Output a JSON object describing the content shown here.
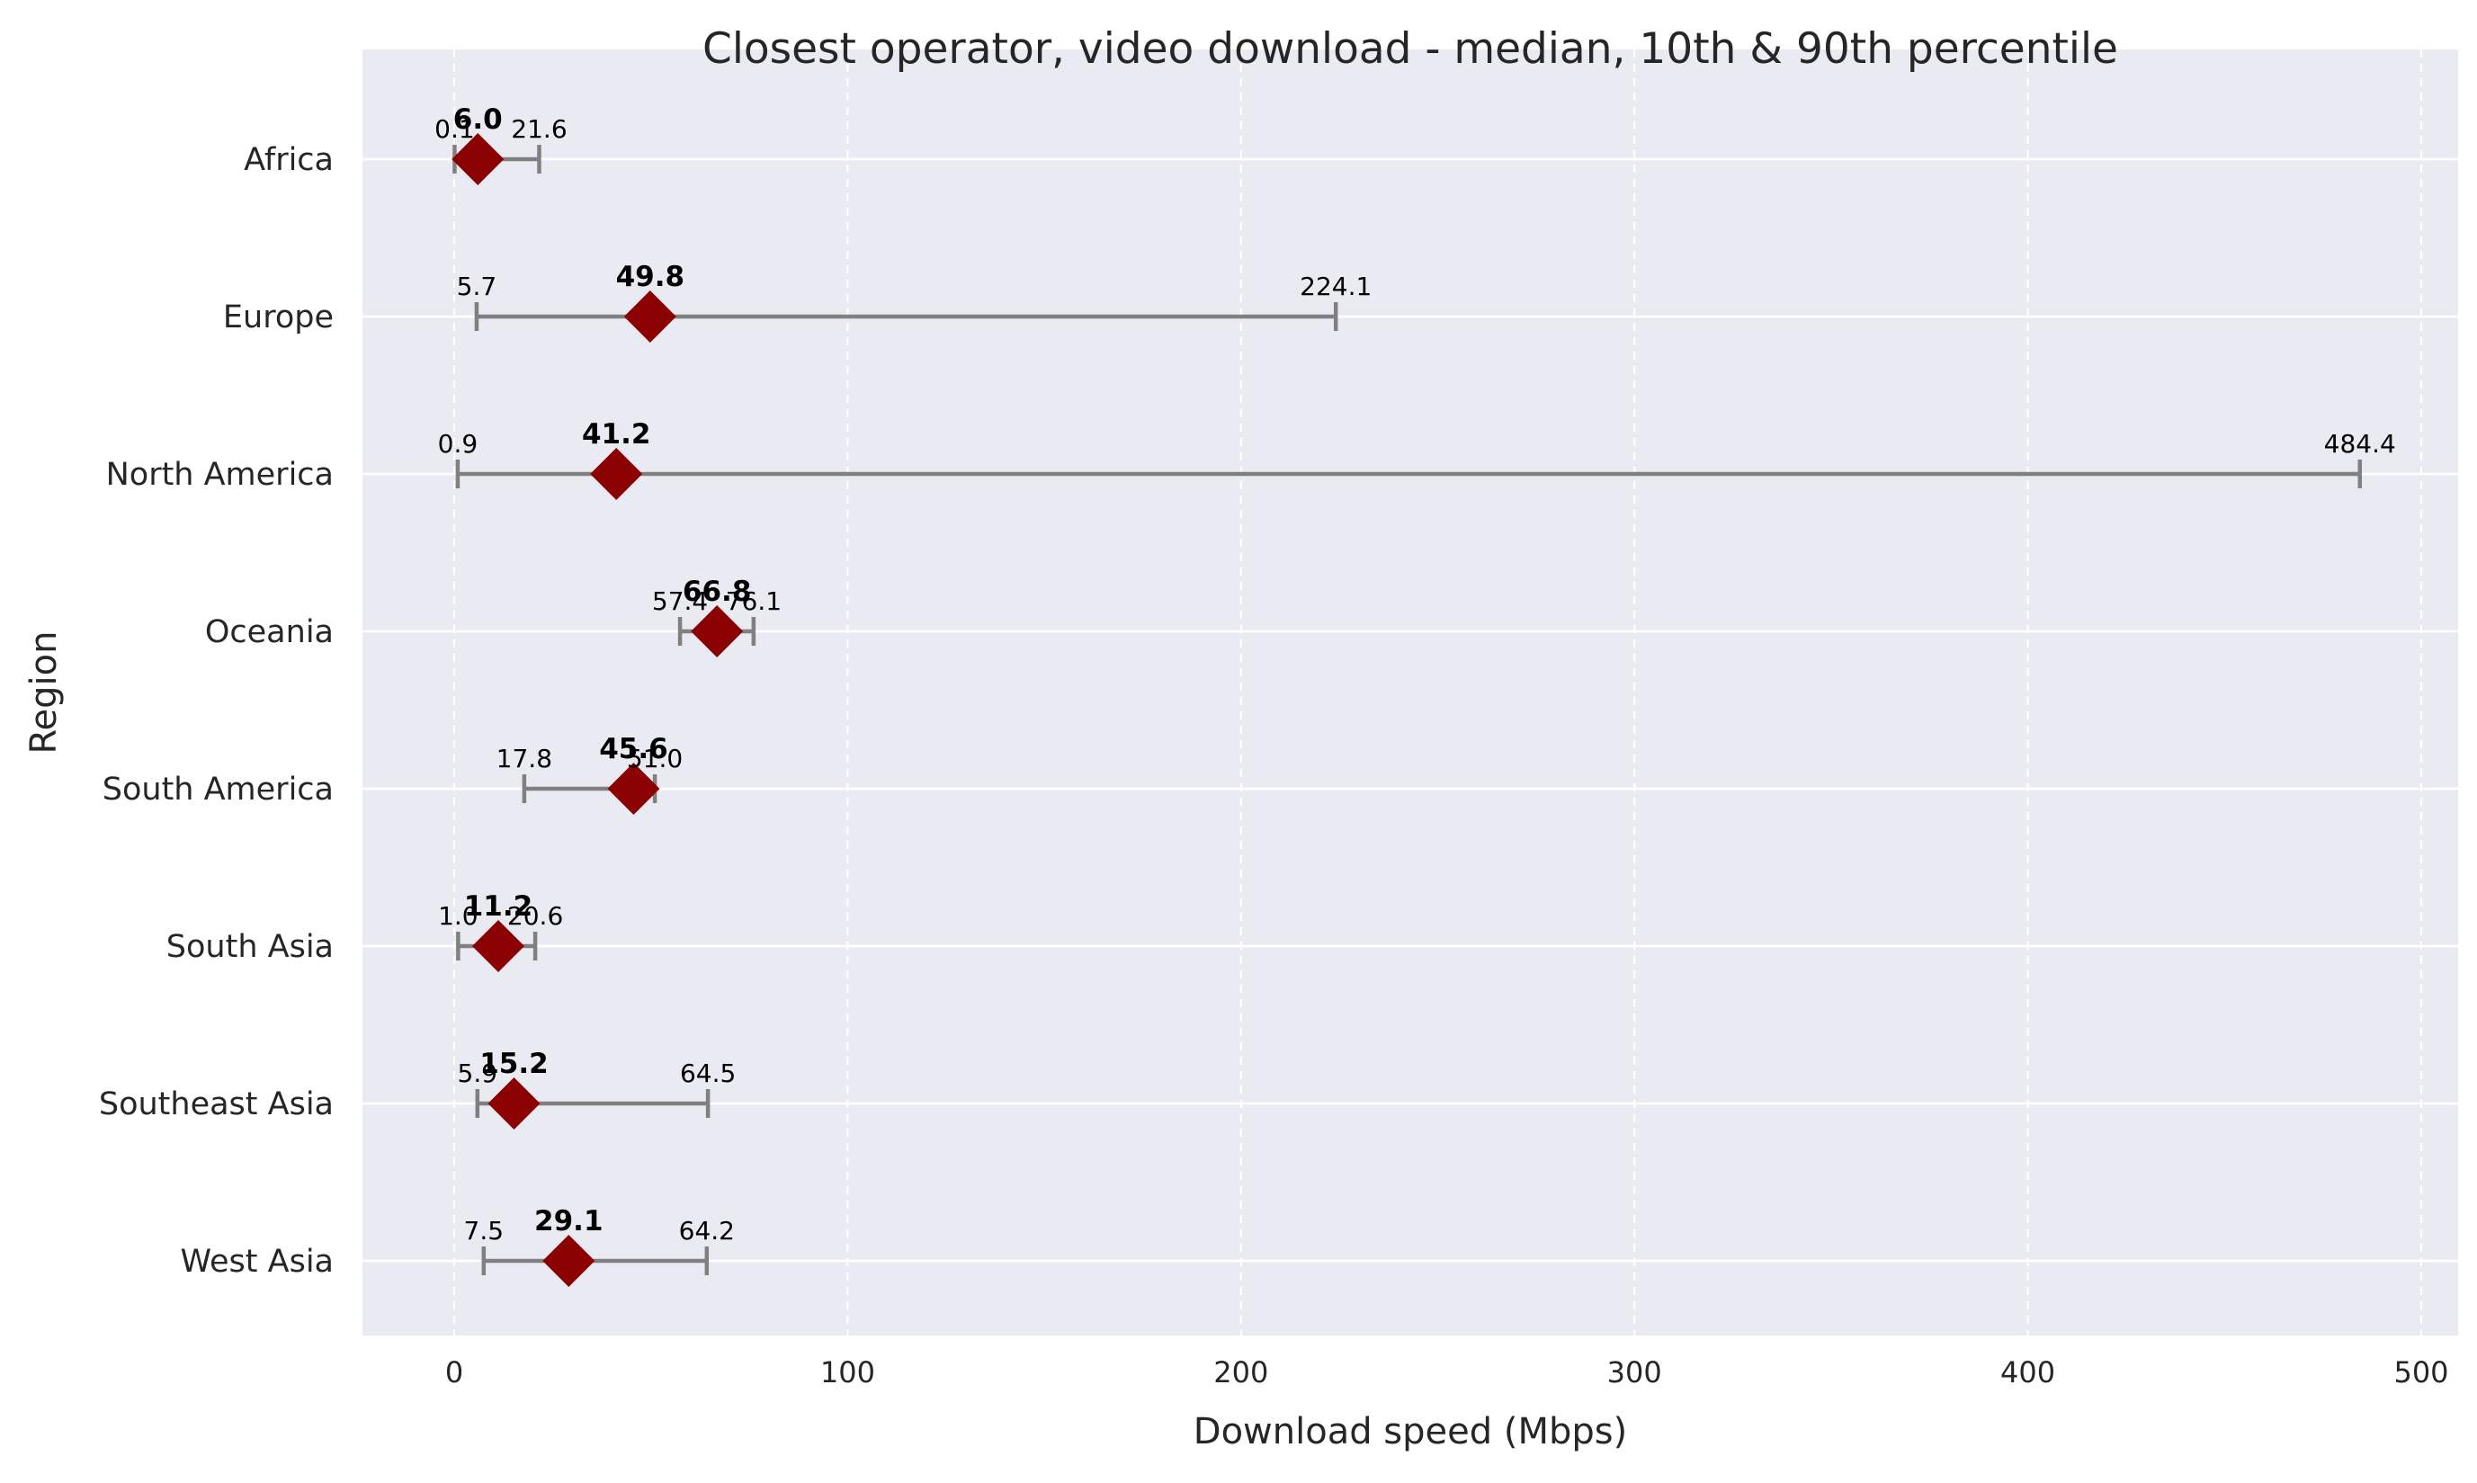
{
  "chart_data": {
    "type": "errorbar",
    "title": "Closest operator, video download - median, 10th & 90th percentile",
    "xlabel": "Download speed (Mbps)",
    "ylabel": "Region",
    "xlim": [
      -23,
      508
    ],
    "xticks": [
      0,
      100,
      200,
      300,
      400,
      500
    ],
    "grid": true,
    "colors": {
      "background": "#eaeaf2",
      "marker": "#8b0000",
      "errorbar": "#808080",
      "grid": "#ffffff"
    },
    "categories": [
      "Africa",
      "Europe",
      "North America",
      "Oceania",
      "South America",
      "South Asia",
      "Southeast Asia",
      "West Asia"
    ],
    "series": [
      {
        "median": [
          6.0,
          49.8,
          41.2,
          66.8,
          45.6,
          11.2,
          15.2,
          29.1
        ],
        "p10": [
          0.1,
          5.7,
          0.9,
          57.4,
          17.8,
          1.0,
          5.9,
          7.5
        ],
        "p90": [
          21.6,
          224.1,
          484.4,
          76.1,
          51.0,
          20.6,
          64.5,
          64.2
        ]
      }
    ],
    "median_labels": [
      "6.0",
      "49.8",
      "41.2",
      "66.8",
      "45.6",
      "11.2",
      "15.2",
      "29.1"
    ],
    "p10_labels": [
      "0.1",
      "5.7",
      "0.9",
      "57.4",
      "17.8",
      "1.0",
      "5.9",
      "7.5"
    ],
    "p90_labels": [
      "21.6",
      "224.1",
      "484.4",
      "76.1",
      "51.0",
      "20.6",
      "64.5",
      "64.2"
    ]
  }
}
